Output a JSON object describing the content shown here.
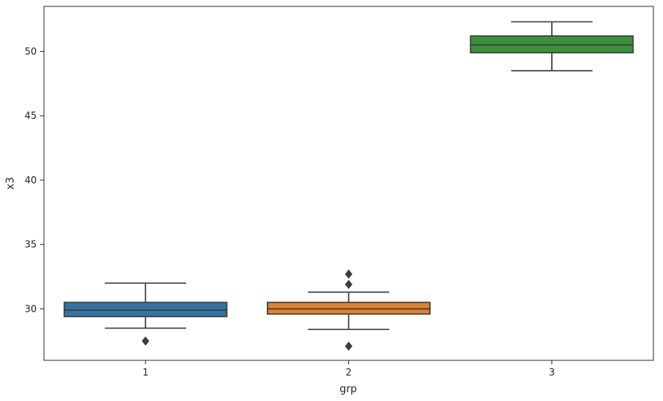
{
  "chart_data": {
    "type": "box",
    "xlabel": "grp",
    "ylabel": "x3",
    "categories": [
      "1",
      "2",
      "3"
    ],
    "ylim": [
      26.0,
      53.5
    ],
    "y_ticks": [
      30,
      35,
      40,
      45,
      50
    ],
    "y_tick_labels": [
      "30",
      "35",
      "40",
      "45",
      "50"
    ],
    "grid": false,
    "boxes": [
      {
        "category": "1",
        "color": "#3274a1",
        "whisker_low": 28.5,
        "q1": 29.4,
        "median": 29.9,
        "q3": 30.5,
        "whisker_high": 32.0,
        "outliers": [
          27.5
        ]
      },
      {
        "category": "2",
        "color": "#e1812c",
        "whisker_low": 28.4,
        "q1": 29.6,
        "median": 30.0,
        "q3": 30.5,
        "whisker_high": 31.3,
        "outliers": [
          27.1,
          31.9,
          32.7
        ]
      },
      {
        "category": "3",
        "color": "#3a923a",
        "whisker_low": 48.5,
        "q1": 49.9,
        "median": 50.5,
        "q3": 51.2,
        "whisker_high": 52.3,
        "outliers": []
      }
    ]
  }
}
